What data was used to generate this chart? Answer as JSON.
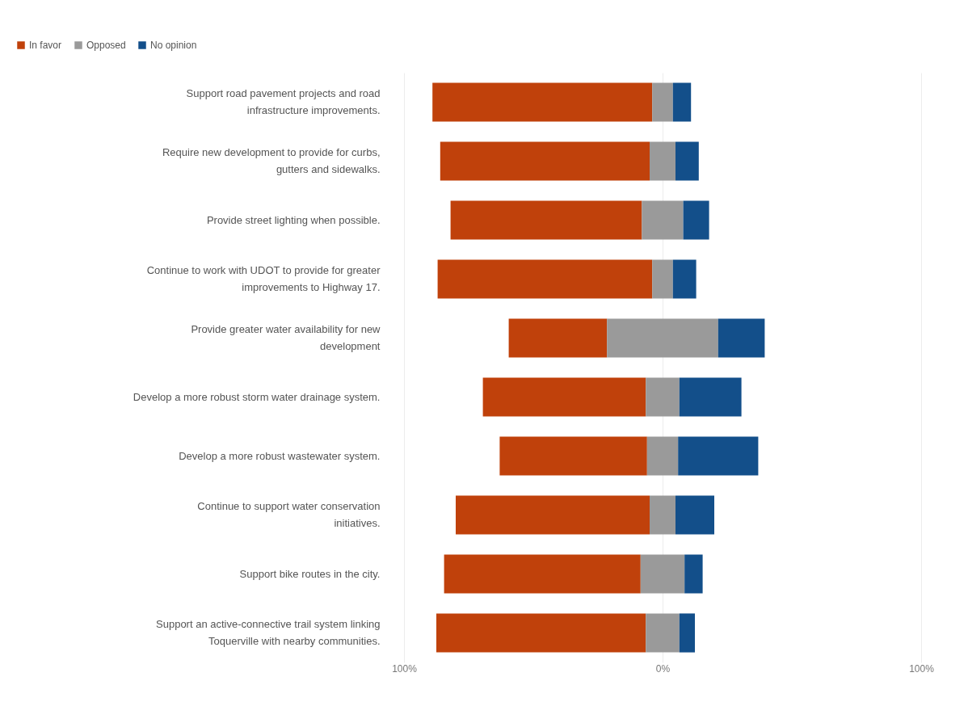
{
  "chart_data": {
    "type": "bar",
    "orientation": "horizontal",
    "categories": [
      "Support road pavement projects and road infrastructure improvements.",
      "Require new development to provide for curbs, gutters and sidewalks.",
      "Provide street lighting when possible.",
      "Continue to work with UDOT to provide for greater improvements to Highway 17.",
      "Provide greater water availability for new development",
      "Develop a more robust storm water drainage system.",
      "Develop a more robust wastewater system.",
      "Continue to support water conservation initiatives.",
      "Support bike routes in the city.",
      "Support an active-connective trail system linking Toquerville with nearby communities."
    ],
    "series": [
      {
        "name": "In favor",
        "color": "#c0410b",
        "values": [
          85,
          81,
          74,
          83,
          38,
          63,
          57,
          75,
          76,
          81
        ],
        "base": [
          -89,
          -86,
          -82,
          -87,
          -59.5,
          -69.5,
          -63,
          -80,
          -84.5,
          -87.5
        ]
      },
      {
        "name": "Opposed",
        "color": "#9a9a9a",
        "values": [
          8,
          10,
          16,
          8,
          43,
          13,
          12,
          10,
          17,
          13
        ],
        "base": [
          -4,
          -5,
          -8,
          -4,
          -21.5,
          -6.5,
          -6,
          -5,
          -8.5,
          -6.5
        ]
      },
      {
        "name": "No opinion",
        "color": "#134f8a",
        "values": [
          7,
          9,
          10,
          9,
          18,
          24,
          31,
          15,
          7,
          6
        ],
        "base": [
          4,
          5,
          8,
          4,
          21.5,
          6.5,
          6,
          5,
          8.5,
          6.5
        ]
      }
    ],
    "xlim": [
      -100,
      100
    ],
    "xticks": [
      {
        "value": -100,
        "label": "100%"
      },
      {
        "value": 0,
        "label": "0%"
      },
      {
        "value": 100,
        "label": "100%"
      }
    ],
    "grid": "x",
    "legend": "top left"
  }
}
